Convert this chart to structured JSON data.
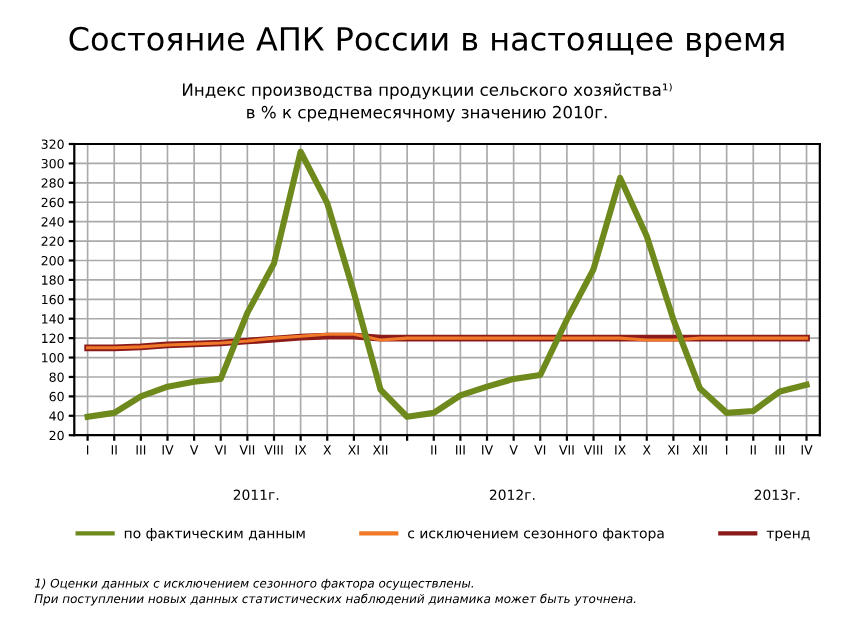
{
  "chart_data": {
    "type": "line",
    "title": "Состояние АПК России в настоящее время",
    "subtitle": "Индекс производства продукции сельского хозяйства¹⁾\nв % к среднемесячному значению 2010г.",
    "categories": [
      "I",
      "II",
      "III",
      "IV",
      "V",
      "VI",
      "VII",
      "VIII",
      "IX",
      "X",
      "XI",
      "XII",
      null,
      "II",
      "III",
      "IV",
      "V",
      "VI",
      "VII",
      "VIII",
      "IX",
      "X",
      "XI",
      "XII",
      "I",
      "II",
      "III",
      "IV"
    ],
    "series": [
      {
        "name": "по фактическим данным",
        "color": "#6f8a1c",
        "values": [
          39,
          43,
          60,
          70,
          75,
          78,
          146,
          197,
          312,
          259,
          167,
          67,
          39,
          43,
          61,
          70,
          78,
          82,
          139,
          191,
          285,
          225,
          139,
          68,
          43,
          45,
          65,
          72
        ]
      },
      {
        "name": "с исключением сезонного фактора",
        "color": "#f07a28",
        "values": [
          110,
          110,
          111,
          113,
          114,
          115,
          117,
          120,
          122,
          124,
          124,
          118,
          120,
          120,
          120,
          120,
          120,
          120,
          120,
          120,
          120,
          118,
          118,
          120,
          120,
          120,
          120,
          120
        ]
      },
      {
        "name": "тренд",
        "color": "#8b1a1a",
        "values": [
          110,
          110,
          111,
          113,
          114,
          115,
          117,
          119,
          121,
          122,
          122,
          120,
          120,
          120,
          120,
          120,
          120,
          120,
          120,
          120,
          120,
          120,
          120,
          120,
          120,
          120,
          120,
          120
        ]
      }
    ],
    "ylim": [
      20,
      320
    ],
    "yticks": [
      20,
      40,
      60,
      80,
      100,
      120,
      140,
      160,
      180,
      200,
      220,
      240,
      260,
      280,
      300,
      320
    ],
    "grid": true,
    "legend": "bottom",
    "marker": "none",
    "line_style": "solid",
    "annotations": [
      "2011г.",
      "2012г.",
      "2013г.",
      "1) Оценки данных с исключением сезонного фактора осуществлены.\nПри поступлении новых данных статистических наблюдений динамика может быть уточнена."
    ]
  }
}
